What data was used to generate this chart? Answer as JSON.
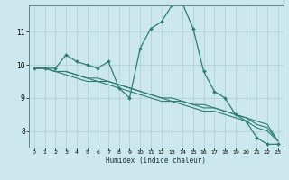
{
  "xlabel": "Humidex (Indice chaleur)",
  "bg_color": "#cce8ee",
  "grid_color": "#aacdd5",
  "line_color": "#2e7d72",
  "xlim": [
    -0.5,
    23.5
  ],
  "ylim": [
    7.5,
    11.8
  ],
  "yticks": [
    8,
    9,
    10,
    11
  ],
  "xticks": [
    0,
    1,
    2,
    3,
    4,
    5,
    6,
    7,
    8,
    9,
    10,
    11,
    12,
    13,
    14,
    15,
    16,
    17,
    18,
    19,
    20,
    21,
    22,
    23
  ],
  "series": [
    [
      9.9,
      9.9,
      9.9,
      10.3,
      10.1,
      10.0,
      9.9,
      10.1,
      9.3,
      9.0,
      10.5,
      11.1,
      11.3,
      11.8,
      11.85,
      11.1,
      9.8,
      9.2,
      9.0,
      8.5,
      8.3,
      7.8,
      7.6,
      7.6
    ],
    [
      9.9,
      9.9,
      9.8,
      9.8,
      9.7,
      9.6,
      9.6,
      9.5,
      9.4,
      9.3,
      9.2,
      9.1,
      9.0,
      8.9,
      8.9,
      8.8,
      8.8,
      8.7,
      8.6,
      8.5,
      8.4,
      8.3,
      8.2,
      7.7
    ],
    [
      9.9,
      9.9,
      9.8,
      9.8,
      9.7,
      9.6,
      9.5,
      9.5,
      9.4,
      9.3,
      9.2,
      9.1,
      9.0,
      9.0,
      8.9,
      8.8,
      8.7,
      8.7,
      8.6,
      8.5,
      8.4,
      8.2,
      8.1,
      7.7
    ],
    [
      9.9,
      9.9,
      9.8,
      9.7,
      9.6,
      9.5,
      9.5,
      9.4,
      9.3,
      9.2,
      9.1,
      9.0,
      8.9,
      8.9,
      8.8,
      8.7,
      8.6,
      8.6,
      8.5,
      8.4,
      8.3,
      8.1,
      8.0,
      7.7
    ]
  ]
}
